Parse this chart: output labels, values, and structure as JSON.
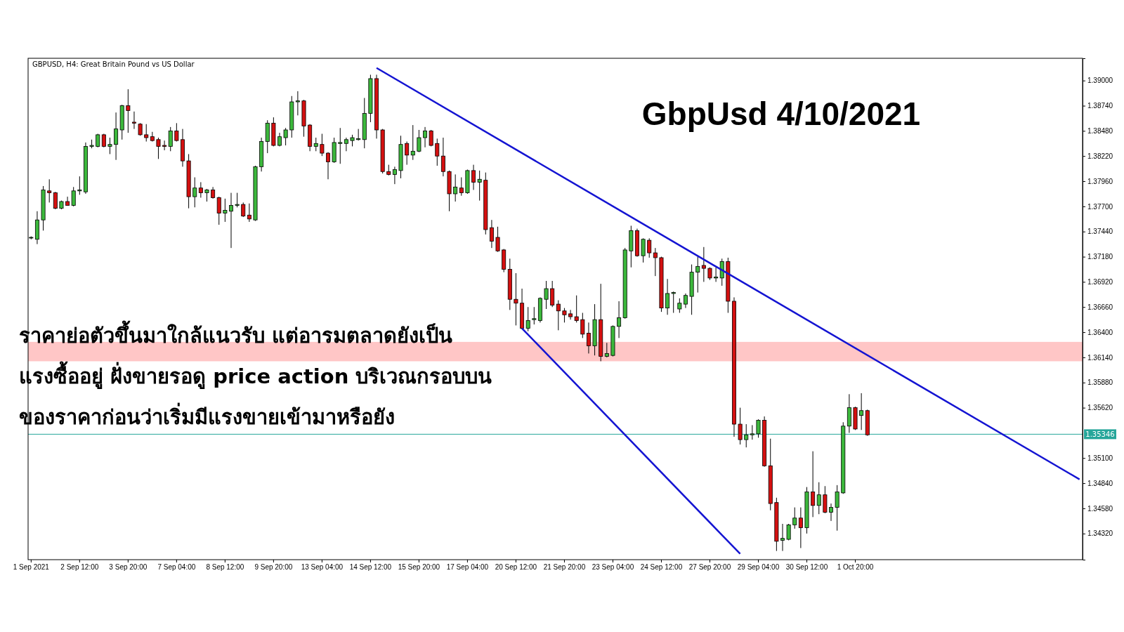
{
  "chart_data": {
    "type": "candlestick",
    "title": "GbpUsd 4/10/2021",
    "subtitle": "GBPUSD, H4:  Great Britain Pound vs US Dollar",
    "annotations": [
      "ราคาย่อตัวขึ้นมาใกล้แนวรับ แต่อารมตลาดยังเป็น",
      "แรงซื้ออยู่ ฝั่งขายรอดู price action บริเวณกรอบบน",
      "ของราคาก่อนว่าเริ่มมีแรงขายเข้ามาหรือยัง"
    ],
    "categories": [
      "1 Sep 2021",
      null,
      null,
      null,
      null,
      null,
      null,
      null,
      "2 Sep 12:00",
      null,
      null,
      null,
      null,
      null,
      null,
      null,
      "3 Sep 20:00",
      null,
      null,
      null,
      null,
      null,
      null,
      null,
      "7 Sep 04:00",
      null,
      null,
      null,
      null,
      null,
      null,
      null,
      "8 Sep 12:00",
      null,
      null,
      null,
      null,
      null,
      null,
      null,
      "9 Sep 20:00",
      null,
      null,
      null,
      null,
      null,
      null,
      null,
      "13 Sep 04:00",
      null,
      null,
      null,
      null,
      null,
      null,
      null,
      "14 Sep 12:00",
      null,
      null,
      null,
      null,
      null,
      null,
      null,
      "15 Sep 20:00",
      null,
      null,
      null,
      null,
      null,
      null,
      null,
      "17 Sep 04:00",
      null,
      null,
      null,
      null,
      null,
      null,
      null,
      "20 Sep 12:00",
      null,
      null,
      null,
      null,
      null,
      null,
      null,
      "21 Sep 20:00",
      null,
      null,
      null,
      null,
      null,
      null,
      null,
      "23 Sep 04:00",
      null,
      null,
      null,
      null,
      null,
      null,
      null,
      "24 Sep 12:00",
      null,
      null,
      null,
      null,
      null,
      null,
      null,
      "27 Sep 20:00",
      null,
      null,
      null,
      null,
      null,
      null,
      null,
      "29 Sep 04:00",
      null,
      null,
      null,
      null,
      null,
      null,
      null,
      "30 Sep 12:00",
      null,
      null,
      null,
      null,
      null,
      null,
      null,
      "1 Oct 20:00",
      null,
      null,
      null,
      null,
      null,
      null,
      null,
      null,
      null,
      null,
      null,
      null,
      null,
      null,
      null,
      null,
      null,
      null,
      null,
      null,
      null,
      null,
      null,
      null,
      null,
      null,
      null,
      null,
      null,
      null,
      null,
      null,
      null,
      null,
      null,
      null,
      null
    ],
    "ohlc": [
      [
        1.3738,
        1.3739,
        1.3736,
        1.3738
      ],
      [
        1.3736,
        1.3765,
        1.3731,
        1.3756
      ],
      [
        1.3756,
        1.3791,
        1.3745,
        1.3787
      ],
      [
        1.3786,
        1.3798,
        1.3774,
        1.3784
      ],
      [
        1.3784,
        1.3785,
        1.3767,
        1.3768
      ],
      [
        1.3768,
        1.3776,
        1.3767,
        1.3775
      ],
      [
        1.3775,
        1.378,
        1.3771,
        1.3771
      ],
      [
        1.3771,
        1.379,
        1.377,
        1.3786
      ],
      [
        1.3786,
        1.3801,
        1.3782,
        1.3787
      ],
      [
        1.3785,
        1.3836,
        1.3783,
        1.3832
      ],
      [
        1.3832,
        1.3839,
        1.383,
        1.3833
      ],
      [
        1.3832,
        1.3845,
        1.3831,
        1.3844
      ],
      [
        1.3844,
        1.3845,
        1.3831,
        1.3832
      ],
      [
        1.3832,
        1.3841,
        1.3824,
        1.3834
      ],
      [
        1.3834,
        1.3867,
        1.3818,
        1.385
      ],
      [
        1.3849,
        1.3875,
        1.3839,
        1.3874
      ],
      [
        1.3874,
        1.3891,
        1.3846,
        1.3869
      ],
      [
        1.3857,
        1.3868,
        1.385,
        1.3856
      ],
      [
        1.3855,
        1.3856,
        1.3843,
        1.3844
      ],
      [
        1.3844,
        1.3855,
        1.3837,
        1.3841
      ],
      [
        1.3842,
        1.3847,
        1.3837,
        1.3838
      ],
      [
        1.3839,
        1.3841,
        1.3819,
        1.3832
      ],
      [
        1.3833,
        1.3838,
        1.3828,
        1.3832
      ],
      [
        1.3832,
        1.3852,
        1.3827,
        1.3848
      ],
      [
        1.3848,
        1.3856,
        1.3837,
        1.3838
      ],
      [
        1.3839,
        1.385,
        1.3811,
        1.3817
      ],
      [
        1.3817,
        1.3824,
        1.3768,
        1.378
      ],
      [
        1.378,
        1.38,
        1.3769,
        1.3789
      ],
      [
        1.3789,
        1.3795,
        1.3779,
        1.3784
      ],
      [
        1.3784,
        1.3788,
        1.3775,
        1.3787
      ],
      [
        1.3787,
        1.379,
        1.3778,
        1.3779
      ],
      [
        1.3779,
        1.378,
        1.3751,
        1.3763
      ],
      [
        1.3763,
        1.3778,
        1.3754,
        1.3766
      ],
      [
        1.3765,
        1.3784,
        1.3727,
        1.3771
      ],
      [
        1.3771,
        1.3784,
        1.3769,
        1.3772
      ],
      [
        1.3772,
        1.3774,
        1.3759,
        1.376
      ],
      [
        1.3761,
        1.3773,
        1.3754,
        1.3757
      ],
      [
        1.3756,
        1.3812,
        1.3755,
        1.3811
      ],
      [
        1.3811,
        1.3841,
        1.3806,
        1.3837
      ],
      [
        1.3837,
        1.3859,
        1.3825,
        1.3856
      ],
      [
        1.3856,
        1.3862,
        1.3832,
        1.3833
      ],
      [
        1.3833,
        1.3846,
        1.3832,
        1.3842
      ],
      [
        1.3841,
        1.3851,
        1.3833,
        1.3849
      ],
      [
        1.3849,
        1.3884,
        1.3841,
        1.3878
      ],
      [
        1.3878,
        1.3889,
        1.3864,
        1.3879
      ],
      [
        1.3879,
        1.388,
        1.3842,
        1.3853
      ],
      [
        1.3854,
        1.3855,
        1.3827,
        1.3832
      ],
      [
        1.3832,
        1.3841,
        1.3827,
        1.3835
      ],
      [
        1.3834,
        1.3845,
        1.3822,
        1.3825
      ],
      [
        1.3825,
        1.3826,
        1.3798,
        1.3816
      ],
      [
        1.3816,
        1.3841,
        1.3815,
        1.3836
      ],
      [
        1.3835,
        1.3851,
        1.3814,
        1.3836
      ],
      [
        1.3835,
        1.3841,
        1.3827,
        1.3839
      ],
      [
        1.3838,
        1.3844,
        1.3832,
        1.3841
      ],
      [
        1.3839,
        1.385,
        1.3838,
        1.384
      ],
      [
        1.3839,
        1.3882,
        1.383,
        1.3866
      ],
      [
        1.3866,
        1.3906,
        1.3857,
        1.3902
      ],
      [
        1.3902,
        1.3906,
        1.384,
        1.3849
      ],
      [
        1.3849,
        1.385,
        1.3804,
        1.3806
      ],
      [
        1.3806,
        1.3813,
        1.3802,
        1.3803
      ],
      [
        1.3803,
        1.3811,
        1.3793,
        1.3808
      ],
      [
        1.3807,
        1.3843,
        1.3799,
        1.3834
      ],
      [
        1.3835,
        1.3837,
        1.3813,
        1.3823
      ],
      [
        1.3823,
        1.3854,
        1.3818,
        1.3827
      ],
      [
        1.3827,
        1.3849,
        1.3826,
        1.3841
      ],
      [
        1.3841,
        1.3852,
        1.3831,
        1.3848
      ],
      [
        1.3848,
        1.3849,
        1.3832,
        1.3833
      ],
      [
        1.3835,
        1.384,
        1.3812,
        1.3822
      ],
      [
        1.3822,
        1.3841,
        1.3801,
        1.3806
      ],
      [
        1.3806,
        1.3807,
        1.3765,
        1.3783
      ],
      [
        1.3783,
        1.3803,
        1.3775,
        1.379
      ],
      [
        1.3789,
        1.38,
        1.3781,
        1.3784
      ],
      [
        1.3784,
        1.3808,
        1.3783,
        1.3807
      ],
      [
        1.3807,
        1.3813,
        1.3787,
        1.3795
      ],
      [
        1.3795,
        1.3807,
        1.3776,
        1.3798
      ],
      [
        1.3797,
        1.3805,
        1.3741,
        1.3746
      ],
      [
        1.3748,
        1.3756,
        1.3727,
        1.3734
      ],
      [
        1.3738,
        1.3749,
        1.3723,
        1.3724
      ],
      [
        1.3725,
        1.3726,
        1.3702,
        1.3705
      ],
      [
        1.3705,
        1.3716,
        1.3663,
        1.3674
      ],
      [
        1.3674,
        1.3701,
        1.3647,
        1.367
      ],
      [
        1.367,
        1.3685,
        1.3643,
        1.3644
      ],
      [
        1.3644,
        1.3666,
        1.3641,
        1.3652
      ],
      [
        1.3653,
        1.3666,
        1.3648,
        1.3654
      ],
      [
        1.3652,
        1.3676,
        1.365,
        1.3675
      ],
      [
        1.3674,
        1.3693,
        1.3664,
        1.3685
      ],
      [
        1.3685,
        1.3693,
        1.3666,
        1.3668
      ],
      [
        1.3669,
        1.3673,
        1.3642,
        1.3662
      ],
      [
        1.3662,
        1.3665,
        1.365,
        1.3658
      ],
      [
        1.3659,
        1.3663,
        1.3653,
        1.3656
      ],
      [
        1.3656,
        1.3678,
        1.365,
        1.3652
      ],
      [
        1.3653,
        1.366,
        1.3634,
        1.3638
      ],
      [
        1.3639,
        1.365,
        1.3618,
        1.3626
      ],
      [
        1.3626,
        1.3669,
        1.3616,
        1.3653
      ],
      [
        1.3653,
        1.369,
        1.361,
        1.3615
      ],
      [
        1.3615,
        1.3629,
        1.3614,
        1.3618
      ],
      [
        1.3616,
        1.3647,
        1.3615,
        1.3646
      ],
      [
        1.3646,
        1.3672,
        1.3634,
        1.3655
      ],
      [
        1.3655,
        1.3727,
        1.3654,
        1.3725
      ],
      [
        1.3724,
        1.375,
        1.3707,
        1.3745
      ],
      [
        1.3745,
        1.3747,
        1.3718,
        1.3719
      ],
      [
        1.3719,
        1.3737,
        1.3712,
        1.3736
      ],
      [
        1.3735,
        1.3737,
        1.3717,
        1.3722
      ],
      [
        1.3722,
        1.3727,
        1.3698,
        1.3717
      ],
      [
        1.3717,
        1.3718,
        1.3661,
        1.3665
      ],
      [
        1.3665,
        1.3695,
        1.3658,
        1.368
      ],
      [
        1.368,
        1.3682,
        1.366,
        1.3681
      ],
      [
        1.3664,
        1.3675,
        1.366,
        1.367
      ],
      [
        1.3669,
        1.368,
        1.3665,
        1.3678
      ],
      [
        1.3677,
        1.371,
        1.3658,
        1.3702
      ],
      [
        1.3702,
        1.3718,
        1.3681,
        1.3708
      ],
      [
        1.3709,
        1.3728,
        1.3692,
        1.3706
      ],
      [
        1.3706,
        1.3707,
        1.3694,
        1.3696
      ],
      [
        1.3696,
        1.3707,
        1.3692,
        1.3697
      ],
      [
        1.3696,
        1.3716,
        1.3688,
        1.3713
      ],
      [
        1.3713,
        1.3717,
        1.366,
        1.3672
      ],
      [
        1.3672,
        1.3676,
        1.3532,
        1.3545
      ],
      [
        1.3545,
        1.3562,
        1.3524,
        1.3529
      ],
      [
        1.3529,
        1.3545,
        1.3521,
        1.3534
      ],
      [
        1.3534,
        1.3544,
        1.3529,
        1.3535
      ],
      [
        1.3535,
        1.355,
        1.3531,
        1.3549
      ],
      [
        1.3549,
        1.3553,
        1.3501,
        1.3502
      ],
      [
        1.3502,
        1.353,
        1.3456,
        1.3463
      ],
      [
        1.3464,
        1.3469,
        1.3414,
        1.3424
      ],
      [
        1.3425,
        1.3442,
        1.3414,
        1.3427
      ],
      [
        1.3426,
        1.3442,
        1.3425,
        1.3441
      ],
      [
        1.3441,
        1.3459,
        1.3437,
        1.3448
      ],
      [
        1.3448,
        1.3459,
        1.3417,
        1.3438
      ],
      [
        1.3438,
        1.348,
        1.3432,
        1.3475
      ],
      [
        1.3475,
        1.3517,
        1.3449,
        1.3461
      ],
      [
        1.3461,
        1.3485,
        1.3452,
        1.3472
      ],
      [
        1.3472,
        1.3481,
        1.3453,
        1.3454
      ],
      [
        1.3454,
        1.3463,
        1.3445,
        1.3459
      ],
      [
        1.3459,
        1.3482,
        1.3435,
        1.3475
      ],
      [
        1.3474,
        1.3547,
        1.3473,
        1.3543
      ],
      [
        1.3543,
        1.3576,
        1.3536,
        1.3562
      ],
      [
        1.3562,
        1.3563,
        1.3539,
        1.354
      ],
      [
        1.3554,
        1.3577,
        1.3539,
        1.3559
      ],
      [
        1.3559,
        1.356,
        1.3533,
        1.3534
      ],
      null,
      null,
      null,
      null,
      null,
      null,
      null,
      null,
      null,
      null,
      null,
      null,
      null,
      null,
      null,
      null,
      null,
      null,
      null,
      null,
      null,
      null,
      null,
      null,
      null,
      null,
      null,
      null,
      null,
      null,
      null,
      null,
      null,
      null,
      null
    ],
    "series": [
      {
        "type": "line",
        "color": "#1414d2",
        "values": [
          null,
          null,
          null,
          null,
          null,
          null,
          null,
          null,
          null,
          null,
          null,
          null,
          null,
          null,
          null,
          null,
          null,
          null,
          null,
          null,
          null,
          null,
          null,
          null,
          null,
          null,
          null,
          null,
          null,
          null,
          null,
          null,
          null,
          null,
          null,
          null,
          null,
          null,
          null,
          null,
          null,
          null,
          null,
          null,
          null,
          null,
          null,
          null,
          null,
          null,
          null,
          null,
          null,
          null,
          null,
          null,
          null,
          1.3913,
          null,
          null,
          null,
          null,
          null,
          null,
          null,
          null,
          null,
          null,
          null,
          null,
          null,
          null,
          null,
          null,
          null,
          null,
          null,
          null,
          null,
          null,
          null,
          null,
          null,
          null,
          null,
          null,
          null,
          null,
          null,
          null,
          null,
          null,
          null,
          null,
          null,
          null,
          null,
          null,
          null,
          null,
          null,
          null,
          null,
          null,
          null,
          null,
          null,
          null,
          null,
          null,
          null,
          null,
          null,
          null,
          null,
          null,
          null,
          null,
          null,
          null,
          null,
          null,
          null,
          null,
          null,
          null,
          null,
          null,
          null,
          null,
          null,
          null,
          null,
          null,
          null,
          null,
          null,
          null,
          null,
          null,
          null,
          null,
          null,
          null,
          null,
          null,
          null,
          null,
          null,
          null,
          null,
          null,
          null,
          null,
          null,
          null,
          null,
          null,
          null,
          null,
          null,
          null,
          null,
          null,
          null,
          null,
          null,
          null,
          null,
          null,
          null,
          null,
          null,
          1.3488
        ]
      },
      {
        "type": "line",
        "color": "#1414d2",
        "values": [
          null,
          null,
          null,
          null,
          null,
          null,
          null,
          null,
          null,
          null,
          null,
          null,
          null,
          null,
          null,
          null,
          null,
          null,
          null,
          null,
          null,
          null,
          null,
          null,
          null,
          null,
          null,
          null,
          null,
          null,
          null,
          null,
          null,
          null,
          null,
          null,
          null,
          null,
          null,
          null,
          null,
          null,
          null,
          null,
          null,
          null,
          null,
          null,
          null,
          null,
          null,
          null,
          null,
          null,
          null,
          null,
          null,
          null,
          null,
          null,
          null,
          null,
          null,
          null,
          null,
          null,
          null,
          null,
          null,
          null,
          null,
          null,
          null,
          null,
          null,
          null,
          null,
          null,
          null,
          null,
          null,
          1.3644,
          null,
          null,
          null,
          null,
          null,
          null,
          null,
          null,
          null,
          null,
          null,
          null,
          null,
          null,
          null,
          null,
          null,
          null,
          null,
          null,
          null,
          null,
          null,
          null,
          null,
          null,
          null,
          null,
          null,
          null,
          null,
          null,
          null,
          null,
          null,
          1.3411,
          null,
          null,
          null,
          null,
          null,
          null,
          null,
          null,
          null,
          null,
          null,
          null,
          null,
          null,
          null,
          null,
          null,
          null,
          null,
          null,
          null,
          null,
          null,
          null,
          null,
          null,
          null,
          null,
          null,
          null,
          null,
          null,
          null,
          null,
          null,
          null,
          null,
          null,
          null,
          null,
          null,
          null,
          null,
          null,
          null,
          null,
          null,
          null,
          null,
          null,
          null,
          null,
          null,
          null,
          null,
          null
        ]
      }
    ],
    "ylim": [
      1.3405,
      1.3923
    ],
    "yticks": [
      {
        "value": 1.3432,
        "label": "1.34320"
      },
      {
        "value": 1.3458,
        "label": "1.34580"
      },
      {
        "value": 1.3484,
        "label": "1.34840"
      },
      {
        "value": 1.351,
        "label": "1.35100"
      },
      {
        "value": 1.3562,
        "label": "1.35620"
      },
      {
        "value": 1.3588,
        "label": "1.35880"
      },
      {
        "value": 1.3614,
        "label": "1.36140"
      },
      {
        "value": 1.364,
        "label": "1.36400"
      },
      {
        "value": 1.3666,
        "label": "1.36660"
      },
      {
        "value": 1.3692,
        "label": "1.36920"
      },
      {
        "value": 1.3718,
        "label": "1.37180"
      },
      {
        "value": 1.3744,
        "label": "1.37440"
      },
      {
        "value": 1.377,
        "label": "1.37700"
      },
      {
        "value": 1.3796,
        "label": "1.37960"
      },
      {
        "value": 1.3822,
        "label": "1.38220"
      },
      {
        "value": 1.3848,
        "label": "1.38480"
      },
      {
        "value": 1.3874,
        "label": "1.38740"
      },
      {
        "value": 1.39,
        "label": "1.39000"
      }
    ],
    "ref_lines": [
      {
        "axis": "y",
        "value": 1.35346,
        "label": "1.35346",
        "color": "#26a69a"
      }
    ],
    "bands": [
      {
        "axis": "y",
        "from": 1.361,
        "to": 1.363,
        "color": "#ffc6c6"
      }
    ]
  }
}
